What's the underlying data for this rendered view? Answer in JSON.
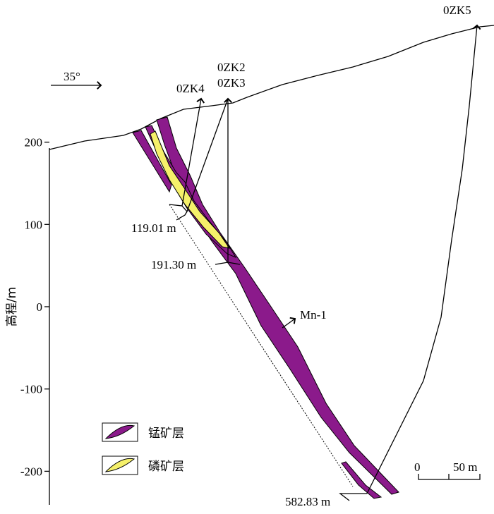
{
  "axis": {
    "label": "高程/m",
    "ticks": [
      200,
      100,
      0,
      -100,
      -200
    ]
  },
  "dip": "35°",
  "boreholes": {
    "zk4": "0ZK4",
    "zk2": "0ZK2",
    "zk3": "0ZK3",
    "zk5": "0ZK5"
  },
  "depths": {
    "d1": "119.01 m",
    "d2": "191.30 m",
    "d3": "582.83 m"
  },
  "orebody": "Mn-1",
  "legend": {
    "mn": "锰矿层",
    "p": "磷矿层"
  },
  "scale": {
    "start": "0",
    "end": "50 m"
  }
}
